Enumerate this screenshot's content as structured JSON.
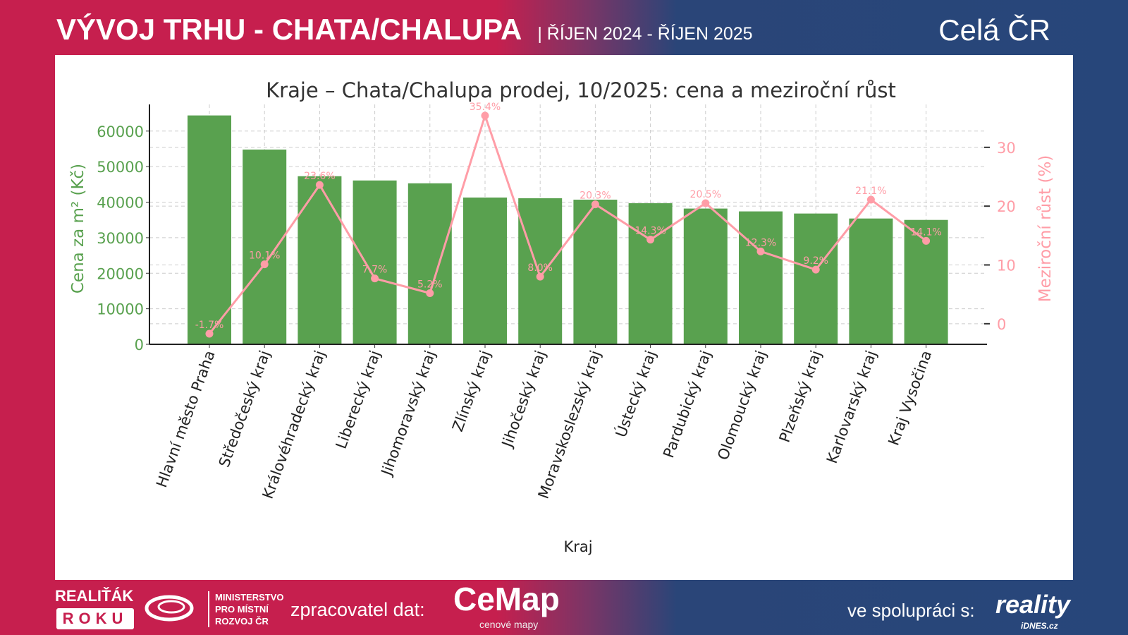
{
  "header": {
    "title": "VÝVOJ TRHU - CHATA/CHALUPA",
    "period": "| ŘÍJEN 2024 - ŘÍJEN 2025",
    "region": "Celá ČR"
  },
  "footer": {
    "award_line1": "REALIŤÁK",
    "award_line2": "ROKU",
    "ministry": [
      "MINISTERSTVO",
      "PRO MÍSTNÍ",
      "ROZVOJ ČR"
    ],
    "processor_label": "zpracovatel dat:",
    "processor_logo": "CeMap",
    "processor_sub": "cenové mapy",
    "partner_label": "ve spolupráci s:",
    "partner_logo": "reality",
    "partner_sub": "iDNES.cz"
  },
  "colors": {
    "bar": "#59a14f",
    "line": "#ff9da7",
    "header_left": "#c61f4e",
    "header_right": "#27467a"
  },
  "chart_data": {
    "type": "bar+line",
    "title": "Kraje – Chata/Chalupa prodej, 10/2025: cena a meziroční růst",
    "xlabel": "Kraj",
    "ylabel": "Cena za m² (Kč)",
    "y2label": "Meziroční růst (%)",
    "categories": [
      "Hlavní město Praha",
      "Středočeský kraj",
      "Královéhradecký kraj",
      "Liberecký kraj",
      "Jihomoravský kraj",
      "Zlínský kraj",
      "Jihočeský kraj",
      "Moravskoslezský kraj",
      "Ústecký kraj",
      "Pardubický kraj",
      "Olomoucký kraj",
      "Plzeňský kraj",
      "Karlovarský kraj",
      "Kraj Vysočina"
    ],
    "series": [
      {
        "type": "bar",
        "axis": "left",
        "values": [
          64400,
          54800,
          47300,
          46100,
          45300,
          41300,
          41100,
          40700,
          39700,
          38200,
          37400,
          36800,
          35400,
          35000
        ]
      },
      {
        "type": "line",
        "axis": "right",
        "values": [
          -1.7,
          10.1,
          23.6,
          7.7,
          5.2,
          35.4,
          8.0,
          20.3,
          14.3,
          20.5,
          12.3,
          9.2,
          21.1,
          14.1
        ],
        "labels": [
          "-1.7%",
          "10.1%",
          "23.6%",
          "7.7%",
          "5.2%",
          "35.4%",
          "8.0%",
          "20.3%",
          "14.3%",
          "20.5%",
          "12.3%",
          "9.2%",
          "21.1%",
          "14.1%"
        ]
      }
    ],
    "ylim": [
      0,
      67500
    ],
    "y2lim": [
      -3.5,
      37.3
    ],
    "yticks": [
      "0",
      "10000",
      "20000",
      "30000",
      "40000",
      "50000",
      "60000"
    ],
    "y2ticks": [
      "0",
      "10",
      "20",
      "30"
    ],
    "grid": true
  }
}
